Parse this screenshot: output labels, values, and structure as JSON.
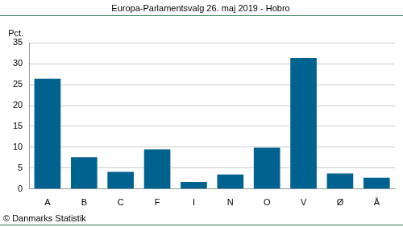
{
  "chart_data": {
    "type": "bar",
    "title": "Europa-Parlamentsvalg 26. maj 2019 - Hobro",
    "ylabel": "Pct.",
    "source": "© Danmarks Statistik",
    "categories": [
      "A",
      "B",
      "C",
      "F",
      "I",
      "N",
      "O",
      "V",
      "Ø",
      "Å"
    ],
    "values": [
      26.4,
      7.6,
      4.1,
      9.5,
      1.7,
      3.5,
      9.9,
      31.4,
      3.7,
      2.7
    ],
    "color": "#00628f",
    "ylim": [
      0,
      35
    ],
    "yticks": [
      0,
      5,
      10,
      15,
      20,
      25,
      30,
      35
    ],
    "grid": true
  }
}
